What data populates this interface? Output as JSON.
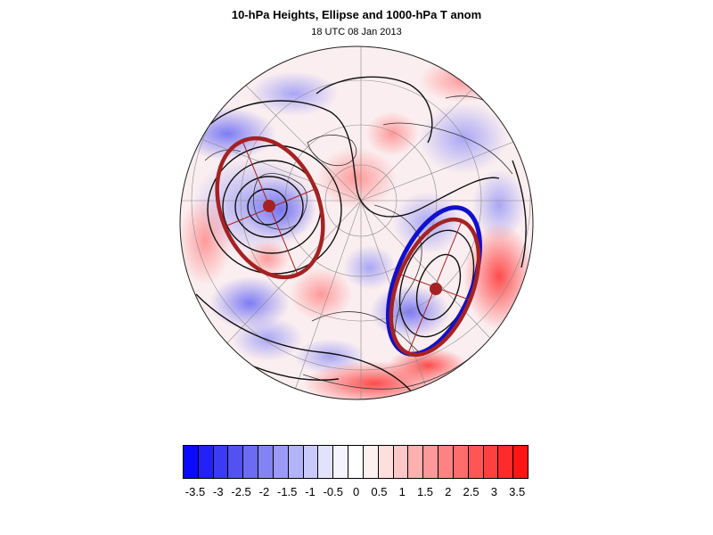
{
  "title": "10-hPa Heights, Ellipse and 1000-hPa T anom",
  "subtitle": "18 UTC 08 Jan 2013",
  "colorbar": {
    "labels": [
      "-3.5",
      "-3",
      "-2.5",
      "-2",
      "-1.5",
      "-1",
      "-0.5",
      "0",
      "0.5",
      "1",
      "1.5",
      "2",
      "2.5",
      "3",
      "3.5"
    ],
    "colors": [
      "#0a0aff",
      "#2121f8",
      "#3b3bf5",
      "#5252f3",
      "#6b6bf3",
      "#8383f5",
      "#9b9bf7",
      "#b3b3f9",
      "#cacafa",
      "#e2e2fc",
      "#f5f3fd",
      "#ffffff",
      "#fff0f0",
      "#ffdede",
      "#ffc8c8",
      "#ffb0b0",
      "#ff9898",
      "#ff8282",
      "#ff6c6c",
      "#ff5555",
      "#ff4040",
      "#ff2b2b",
      "#ff1515"
    ]
  },
  "map": {
    "projection": "polar-stereographic",
    "features": [
      "temperature-anomaly-shading",
      "geopotential-height-contours",
      "coastlines",
      "lat-lon-grid",
      "vortex-ellipse-red",
      "vortex-ellipse-blue",
      "vortex-centroid-markers"
    ],
    "colors": {
      "ellipse_red": "#a52222",
      "ellipse_blue": "#1010cc",
      "contour": "#111111"
    }
  }
}
